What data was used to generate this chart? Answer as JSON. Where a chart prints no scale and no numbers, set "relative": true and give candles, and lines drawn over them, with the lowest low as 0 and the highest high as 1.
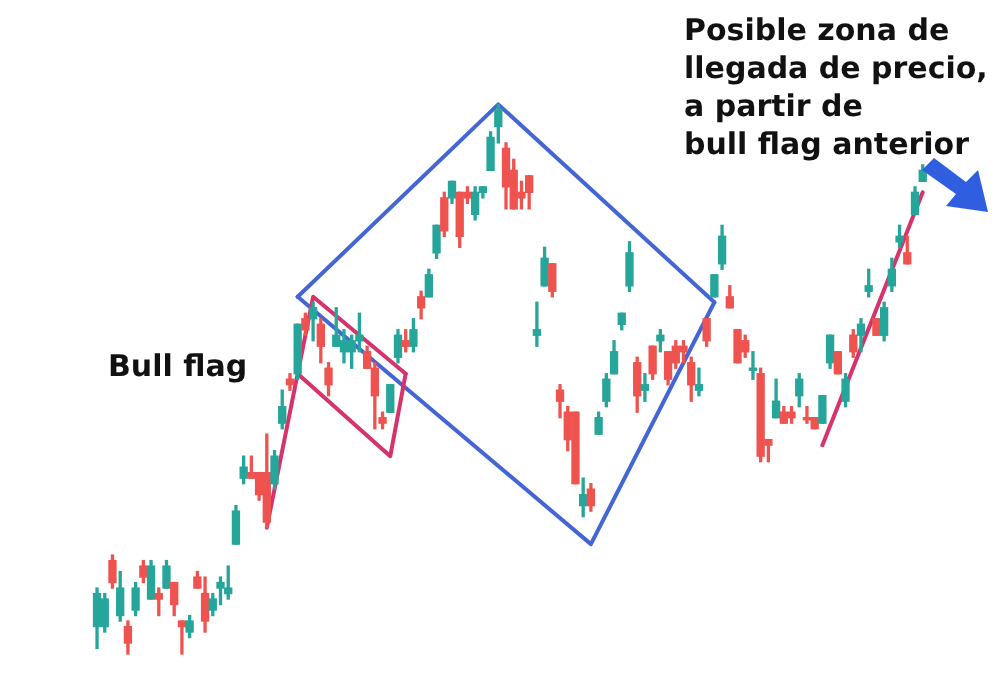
{
  "chart_data": {
    "type": "candlestick",
    "relative": true,
    "categories": [
      null,
      null,
      null,
      null,
      null,
      null,
      null,
      null,
      null,
      null,
      null,
      null,
      null,
      null,
      null,
      null,
      null,
      null,
      null,
      null,
      null,
      null,
      null,
      null,
      null,
      null,
      null,
      null,
      null,
      null,
      null,
      null,
      null,
      null,
      null,
      null,
      null,
      null,
      null,
      null,
      null,
      null,
      null,
      null,
      null,
      null,
      null,
      null,
      null,
      null,
      null,
      null,
      null,
      null,
      null,
      null,
      null,
      null,
      null,
      null,
      null,
      null,
      null,
      null,
      null,
      null,
      null,
      null,
      null,
      null,
      null,
      null,
      null,
      null,
      null,
      null,
      null,
      null,
      null,
      null,
      null,
      null,
      null,
      null,
      null,
      null,
      null,
      null,
      null,
      null,
      null,
      null,
      null,
      null,
      null,
      null,
      null,
      null,
      null,
      null,
      null,
      null,
      null,
      null,
      null,
      null,
      null,
      null
    ],
    "series": [
      {
        "ohlc": [
          [
            0.05,
            0.12,
            0.01,
            0.11
          ],
          [
            0.05,
            0.11,
            0.04,
            0.1
          ],
          [
            0.17,
            0.18,
            0.12,
            0.13
          ],
          [
            0.07,
            0.15,
            0.06,
            0.12
          ],
          [
            0.05,
            0.06,
            0,
            0.02
          ],
          [
            0.08,
            0.13,
            0.07,
            0.12
          ],
          [
            0.16,
            0.17,
            0.13,
            0.14
          ],
          [
            0.1,
            0.17,
            0.1,
            0.16
          ],
          [
            0.11,
            0.12,
            0.07,
            0.1
          ],
          [
            0.12,
            0.17,
            0.12,
            0.16
          ],
          [
            0.13,
            0.13,
            0.07,
            0.09
          ],
          [
            0.06,
            0.06,
            0,
            0.05
          ],
          [
            0.04,
            0.07,
            0.03,
            0.06
          ],
          [
            0.14,
            0.15,
            0.12,
            0.12
          ],
          [
            0.11,
            0.14,
            0.04,
            0.06
          ],
          [
            0.08,
            0.11,
            0.07,
            0.1
          ],
          [
            0.12,
            0.14,
            0.09,
            0.13
          ],
          [
            0.11,
            0.16,
            0.1,
            0.12
          ],
          [
            0.2,
            0.27,
            0.2,
            0.26
          ],
          [
            0.32,
            0.36,
            0.31,
            0.34
          ],
          [
            0.33,
            0.36,
            0.32,
            0.32
          ],
          [
            0.33,
            0.33,
            0.28,
            0.29
          ],
          [
            0.33,
            0.4,
            0.23,
            0.24
          ],
          [
            0.31,
            0.37,
            0.3,
            0.36
          ],
          [
            0.42,
            0.48,
            0.41,
            0.45
          ],
          [
            0.5,
            0.51,
            0.48,
            0.49
          ],
          [
            0.51,
            0.6,
            0.5,
            0.6
          ],
          [
            0.61,
            0.62,
            0.58,
            0.59
          ],
          [
            0.61,
            0.64,
            0.57,
            0.63
          ],
          [
            0.6,
            0.61,
            0.53,
            0.56
          ],
          [
            0.52,
            0.53,
            0.47,
            0.49
          ],
          [
            0.56,
            0.63,
            0.56,
            0.58
          ],
          [
            0.55,
            0.59,
            0.53,
            0.57
          ],
          [
            0.55,
            0.58,
            0.52,
            0.57
          ],
          [
            0.57,
            0.62,
            0.55,
            0.58
          ],
          [
            0.55,
            0.56,
            0.52,
            0.52
          ],
          [
            0.52,
            0.53,
            0.41,
            0.47
          ],
          [
            0.43,
            0.44,
            0.41,
            0.42
          ],
          [
            0.44,
            0.49,
            0.44,
            0.49
          ],
          [
            0.54,
            0.59,
            0.53,
            0.58
          ],
          [
            0.57,
            0.59,
            0.55,
            0.56
          ],
          [
            0.56,
            0.61,
            0.55,
            0.59
          ],
          [
            0.65,
            0.66,
            0.61,
            0.63
          ],
          [
            0.65,
            0.7,
            0.65,
            0.69
          ],
          [
            0.73,
            0.78,
            0.72,
            0.78
          ],
          [
            0.83,
            0.84,
            0.76,
            0.77
          ],
          [
            0.83,
            0.86,
            0.82,
            0.86
          ],
          [
            0.84,
            0.84,
            0.74,
            0.76
          ],
          [
            0.84,
            0.85,
            0.82,
            0.83
          ],
          [
            0.8,
            0.85,
            0.79,
            0.84
          ],
          [
            0.84,
            0.85,
            0.83,
            0.85
          ],
          [
            0.88,
            0.95,
            0.88,
            0.94
          ],
          [
            0.96,
            1,
            0.93,
            0.99
          ],
          [
            0.92,
            0.93,
            0.81,
            0.85
          ],
          [
            0.88,
            0.9,
            0.81,
            0.81
          ],
          [
            0.84,
            0.86,
            0.81,
            0.83
          ],
          [
            0.87,
            0.87,
            0.81,
            0.84
          ],
          [
            0.58,
            0.64,
            0.56,
            0.59
          ],
          [
            0.67,
            0.74,
            0.67,
            0.72
          ],
          [
            0.71,
            0.71,
            0.65,
            0.66
          ],
          [
            0.48,
            0.49,
            0.43,
            0.46
          ],
          [
            0.44,
            0.45,
            0.37,
            0.39
          ],
          [
            0.44,
            0.44,
            0.31,
            0.31
          ],
          [
            0.27,
            0.32,
            0.25,
            0.29
          ],
          [
            0.3,
            0.31,
            0.26,
            0.27
          ],
          [
            0.4,
            0.44,
            0.4,
            0.43
          ],
          [
            0.46,
            0.51,
            0.45,
            0.5
          ],
          [
            0.51,
            0.57,
            0.51,
            0.55
          ],
          [
            0.6,
            0.62,
            0.59,
            0.62
          ],
          [
            0.67,
            0.75,
            0.66,
            0.73
          ],
          [
            0.53,
            0.54,
            0.44,
            0.47
          ],
          [
            0.48,
            0.51,
            0.46,
            0.49
          ],
          [
            0.56,
            0.56,
            0.5,
            0.51
          ],
          [
            0.57,
            0.59,
            0.55,
            0.58
          ],
          [
            0.55,
            0.55,
            0.49,
            0.5
          ],
          [
            0.56,
            0.57,
            0.52,
            0.53
          ],
          [
            0.56,
            0.57,
            0.53,
            0.55
          ],
          [
            0.53,
            0.54,
            0.46,
            0.49
          ],
          [
            0.48,
            0.52,
            0.47,
            0.49
          ],
          [
            0.61,
            0.61,
            0.56,
            0.57
          ],
          [
            0.65,
            0.69,
            0.65,
            0.69
          ],
          [
            0.71,
            0.78,
            0.7,
            0.76
          ],
          [
            0.65,
            0.67,
            0.63,
            0.63
          ],
          [
            0.59,
            0.59,
            0.53,
            0.53
          ],
          [
            0.57,
            0.58,
            0.54,
            0.55
          ],
          [
            0.52,
            0.55,
            0.5,
            0.52
          ],
          [
            0.51,
            0.52,
            0.35,
            0.36
          ],
          [
            0.39,
            0.39,
            0.35,
            0.38
          ],
          [
            0.43,
            0.5,
            0.43,
            0.46
          ],
          [
            0.44,
            0.45,
            0.42,
            0.42
          ],
          [
            0.44,
            0.45,
            0.42,
            0.43
          ],
          [
            0.47,
            0.51,
            0.45,
            0.5
          ],
          [
            0.43,
            0.45,
            0.42,
            0.43
          ],
          [
            0.43,
            0.43,
            0.41,
            0.41
          ],
          [
            0.42,
            0.47,
            0.42,
            0.47
          ],
          [
            0.53,
            0.58,
            0.52,
            0.58
          ],
          [
            0.55,
            0.55,
            0.51,
            0.51
          ],
          [
            0.46,
            0.51,
            0.45,
            0.5
          ],
          [
            0.58,
            0.59,
            0.54,
            0.55
          ],
          [
            0.58,
            0.61,
            0.55,
            0.6
          ],
          [
            0.66,
            0.7,
            0.65,
            0.67
          ],
          [
            0.61,
            0.61,
            0.58,
            0.58
          ],
          [
            0.58,
            0.64,
            0.57,
            0.63
          ],
          [
            0.67,
            0.72,
            0.66,
            0.7
          ],
          [
            0.75,
            0.78,
            0.74,
            0.76
          ],
          [
            0.73,
            0.76,
            0.71,
            0.71
          ],
          [
            0.8,
            0.85,
            0.8,
            0.84
          ],
          [
            0.86,
            0.89,
            0.86,
            0.88
          ]
        ],
        "colors": [
          "#26a69a",
          "#26a69a",
          "#ef5350",
          "#26a69a",
          "#ef5350",
          "#26a69a",
          "#ef5350",
          "#26a69a",
          "#ef5350",
          "#26a69a",
          "#ef5350",
          "#ef5350",
          "#26a69a",
          "#ef5350",
          "#ef5350",
          "#26a69a",
          "#26a69a",
          "#26a69a",
          "#26a69a",
          "#26a69a",
          "#ef5350",
          "#ef5350",
          "#ef5350",
          "#26a69a",
          "#26a69a",
          "#ef5350",
          "#26a69a",
          "#ef5350",
          "#26a69a",
          "#ef5350",
          "#ef5350",
          "#26a69a",
          "#26a69a",
          "#26a69a",
          "#26a69a",
          "#ef5350",
          "#ef5350",
          "#ef5350",
          "#26a69a",
          "#26a69a",
          "#ef5350",
          "#26a69a",
          "#ef5350",
          "#26a69a",
          "#26a69a",
          "#ef5350",
          "#26a69a",
          "#ef5350",
          "#ef5350",
          "#26a69a",
          "#26a69a",
          "#26a69a",
          "#26a69a",
          "#ef5350",
          "#ef5350",
          "#ef5350",
          "#ef5350",
          "#26a69a",
          "#26a69a",
          "#ef5350",
          "#ef5350",
          "#ef5350",
          "#ef5350",
          "#26a69a",
          "#ef5350",
          "#26a69a",
          "#26a69a",
          "#26a69a",
          "#26a69a",
          "#26a69a",
          "#ef5350",
          "#26a69a",
          "#ef5350",
          "#26a69a",
          "#ef5350",
          "#ef5350",
          "#ef5350",
          "#ef5350",
          "#26a69a",
          "#ef5350",
          "#26a69a",
          "#26a69a",
          "#ef5350",
          "#ef5350",
          "#ef5350",
          "#26a69a",
          "#ef5350",
          "#ef5350",
          "#26a69a",
          "#ef5350",
          "#ef5350",
          "#26a69a",
          "#ef5350",
          "#ef5350",
          "#26a69a",
          "#26a69a",
          "#ef5350",
          "#26a69a",
          "#ef5350",
          "#26a69a",
          "#26a69a",
          "#ef5350",
          "#26a69a",
          "#26a69a",
          "#26a69a",
          "#ef5350",
          "#26a69a",
          "#26a69a"
        ]
      },
      {
        "type": "line",
        "color": "#d6336c",
        "values": [
          null,
          null,
          null,
          null,
          null,
          null,
          null,
          null,
          null,
          null,
          null,
          null,
          null,
          null,
          null,
          null,
          null,
          null,
          null,
          null,
          null,
          null,
          0.23,
          null,
          null,
          null,
          0.51,
          null,
          0.65,
          null,
          null,
          null,
          null,
          null,
          null,
          null,
          null,
          null,
          null,
          null,
          0.51,
          null,
          null,
          null,
          null,
          null,
          null,
          null,
          null,
          null,
          null,
          null,
          null,
          null,
          null,
          null,
          null,
          null,
          null,
          null,
          null,
          null,
          null,
          null,
          null,
          null,
          null,
          null,
          null,
          null,
          null,
          null,
          null,
          null,
          null,
          null,
          null,
          null,
          null,
          null,
          null,
          null,
          null,
          null,
          null,
          null,
          null,
          null,
          null,
          null,
          null,
          null,
          null,
          null,
          null,
          null,
          null,
          null,
          null,
          null,
          null,
          null,
          null,
          null,
          null,
          null,
          null,
          null
        ]
      },
      {
        "type": "line",
        "color": "#d6336c",
        "values": [
          null,
          null,
          null,
          null,
          null,
          null,
          null,
          null,
          null,
          null,
          null,
          null,
          null,
          null,
          null,
          null,
          null,
          null,
          null,
          null,
          null,
          null,
          null,
          null,
          null,
          null,
          0.51,
          null,
          null,
          null,
          null,
          null,
          null,
          null,
          null,
          null,
          null,
          null,
          0.36,
          null,
          0.51,
          null,
          null,
          null,
          null,
          null,
          null,
          null,
          null,
          null,
          null,
          null,
          null,
          null,
          null,
          null,
          null,
          null,
          null,
          null,
          null,
          null,
          null,
          null,
          null,
          null,
          null,
          null,
          null,
          null,
          null,
          null,
          null,
          null,
          null,
          null,
          null,
          null,
          null,
          null,
          null,
          null,
          null,
          null,
          null,
          null,
          null,
          null,
          null,
          null,
          null,
          null,
          null,
          null,
          null,
          null,
          null,
          null,
          null,
          null,
          null,
          null,
          null,
          null,
          null,
          null,
          null,
          null
        ]
      },
      {
        "type": "line",
        "color": "#4466d4",
        "values": [
          null,
          null,
          null,
          null,
          null,
          null,
          null,
          null,
          null,
          null,
          null,
          null,
          null,
          null,
          null,
          null,
          null,
          null,
          null,
          null,
          null,
          null,
          null,
          null,
          null,
          null,
          0.65,
          null,
          null,
          null,
          null,
          null,
          null,
          null,
          null,
          null,
          null,
          null,
          null,
          null,
          null,
          null,
          null,
          null,
          null,
          null,
          null,
          null,
          null,
          null,
          null,
          null,
          1.0,
          null,
          null,
          null,
          null,
          null,
          null,
          null,
          null,
          null,
          null,
          null,
          null,
          null,
          null,
          null,
          null,
          null,
          null,
          null,
          null,
          null,
          null,
          null,
          null,
          null,
          null,
          null,
          0.64,
          null,
          null,
          null,
          null,
          null,
          null,
          null,
          null,
          null,
          null,
          null,
          null,
          null,
          null,
          null,
          null,
          null,
          null,
          null,
          null,
          null,
          null,
          null,
          null,
          null,
          null,
          null
        ]
      },
      {
        "type": "line",
        "color": "#4466d4",
        "values": [
          null,
          null,
          null,
          null,
          null,
          null,
          null,
          null,
          null,
          null,
          null,
          null,
          null,
          null,
          null,
          null,
          null,
          null,
          null,
          null,
          null,
          null,
          null,
          null,
          null,
          null,
          0.65,
          null,
          null,
          null,
          null,
          null,
          null,
          null,
          null,
          null,
          null,
          null,
          null,
          null,
          null,
          null,
          null,
          null,
          null,
          null,
          null,
          null,
          null,
          null,
          null,
          null,
          null,
          null,
          null,
          null,
          null,
          null,
          null,
          null,
          null,
          null,
          null,
          null,
          0.2,
          null,
          null,
          null,
          null,
          null,
          null,
          null,
          null,
          null,
          null,
          null,
          null,
          null,
          null,
          null,
          0.64,
          null,
          null,
          null,
          null,
          null,
          null,
          null,
          null,
          null,
          null,
          null,
          null,
          null,
          null,
          null,
          null,
          null,
          null,
          null,
          null,
          null,
          null,
          null,
          null,
          null,
          null,
          null
        ]
      },
      {
        "type": "line",
        "color": "#d6336c",
        "values": [
          null,
          null,
          null,
          null,
          null,
          null,
          null,
          null,
          null,
          null,
          null,
          null,
          null,
          null,
          null,
          null,
          null,
          null,
          null,
          null,
          null,
          null,
          null,
          null,
          null,
          null,
          null,
          null,
          null,
          null,
          null,
          null,
          null,
          null,
          null,
          null,
          null,
          null,
          null,
          null,
          null,
          null,
          null,
          null,
          null,
          null,
          null,
          null,
          null,
          null,
          null,
          null,
          null,
          null,
          null,
          null,
          null,
          null,
          null,
          null,
          null,
          null,
          null,
          null,
          null,
          null,
          null,
          null,
          null,
          null,
          null,
          null,
          null,
          null,
          null,
          null,
          null,
          null,
          null,
          null,
          null,
          null,
          null,
          null,
          null,
          null,
          null,
          null,
          null,
          null,
          null,
          null,
          null,
          null,
          0.38,
          null,
          null,
          null,
          null,
          null,
          null,
          null,
          null,
          null,
          null,
          null,
          null,
          0.84
        ]
      }
    ],
    "annotations": [
      "Bull flag",
      "Posible zona de\nllegada de precio,\na partir de\nbull flag anterior"
    ]
  }
}
